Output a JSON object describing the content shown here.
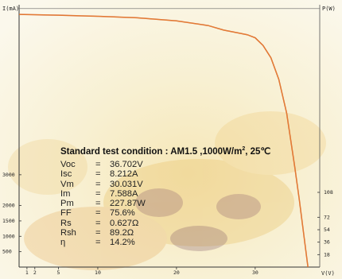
{
  "chart_data": {
    "type": "line",
    "title": "",
    "xlabel": "V(V)",
    "ylabel": "I(mA)",
    "y2label": "P(W)",
    "x_ticks": [
      1,
      2,
      5,
      10,
      20,
      30
    ],
    "y_ticks": [
      500,
      1000,
      1500,
      2000,
      3000
    ],
    "y2_ticks": [
      18,
      36,
      54,
      72,
      108
    ],
    "xlim": [
      0,
      38.2
    ],
    "ylim": [
      0,
      8400
    ],
    "series": [
      {
        "x": [
          0,
          5,
          10,
          15,
          20,
          24,
          26,
          28,
          29,
          30,
          31,
          32,
          33,
          34,
          35,
          35.6,
          36.2,
          36.702
        ],
        "y": [
          8212,
          8185,
          8150,
          8100,
          8000,
          7850,
          7700,
          7600,
          7550,
          7450,
          7200,
          6800,
          6100,
          5000,
          3300,
          2200,
          1000,
          0
        ]
      }
    ],
    "grid": false,
    "legend": "none",
    "color": "#d65a1e"
  },
  "annotation": {
    "title": "Standard test condition : AM1.5 ,1000W/m",
    "title_sup": "2",
    "title_tail": ", 25℃",
    "params": [
      {
        "name": "Voc",
        "eq": "=",
        "value": "36.702V"
      },
      {
        "name": "Isc",
        "eq": "=",
        "value": "8.212A"
      },
      {
        "name": "Vm",
        "eq": "=",
        "value": "30.031V"
      },
      {
        "name": "Im",
        "eq": "=",
        "value": "7.588A"
      },
      {
        "name": "Pm",
        "eq": "=",
        "value": "227.87W"
      },
      {
        "name": "FF",
        "eq": "=",
        "value": "75.6%"
      },
      {
        "name": "Rs",
        "eq": "=",
        "value": "0.627Ω"
      },
      {
        "name": "Rsh",
        "eq": "=",
        "value": "89.2Ω"
      },
      {
        "name": "η",
        "eq": "=",
        "value": "14.2%"
      }
    ]
  }
}
